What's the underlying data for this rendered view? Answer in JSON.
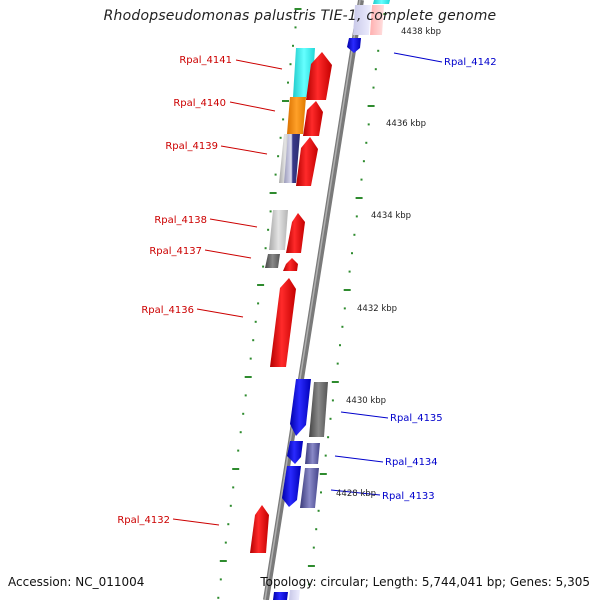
{
  "title": "Rhodopseudomonas palustris TIE-1, complete genome",
  "footer": {
    "accession": "Accession: NC_011004",
    "summary": "Topology: circular; Length: 5,744,041 bp; Genes: 5,305"
  },
  "colors": {
    "forward_label": "#cc0000",
    "reverse_label": "#0000cc",
    "backbone": "#808080",
    "tick": "#2e8b2e"
  },
  "scale": [
    {
      "label": "4438 kbp"
    },
    {
      "label": "4436 kbp"
    },
    {
      "label": "4434 kbp"
    },
    {
      "label": "4432 kbp"
    },
    {
      "label": "4430 kbp"
    },
    {
      "label": "4428 kbp"
    }
  ],
  "genes": [
    {
      "name": "Rpal_4141",
      "strand": "forward"
    },
    {
      "name": "Rpal_4140",
      "strand": "forward"
    },
    {
      "name": "Rpal_4139",
      "strand": "forward"
    },
    {
      "name": "Rpal_4138",
      "strand": "forward"
    },
    {
      "name": "Rpal_4137",
      "strand": "forward"
    },
    {
      "name": "Rpal_4136",
      "strand": "forward"
    },
    {
      "name": "Rpal_4132",
      "strand": "forward"
    },
    {
      "name": "Rpal_4142",
      "strand": "reverse"
    },
    {
      "name": "Rpal_4135",
      "strand": "reverse"
    },
    {
      "name": "Rpal_4134",
      "strand": "reverse"
    },
    {
      "name": "Rpal_4133",
      "strand": "reverse"
    }
  ]
}
